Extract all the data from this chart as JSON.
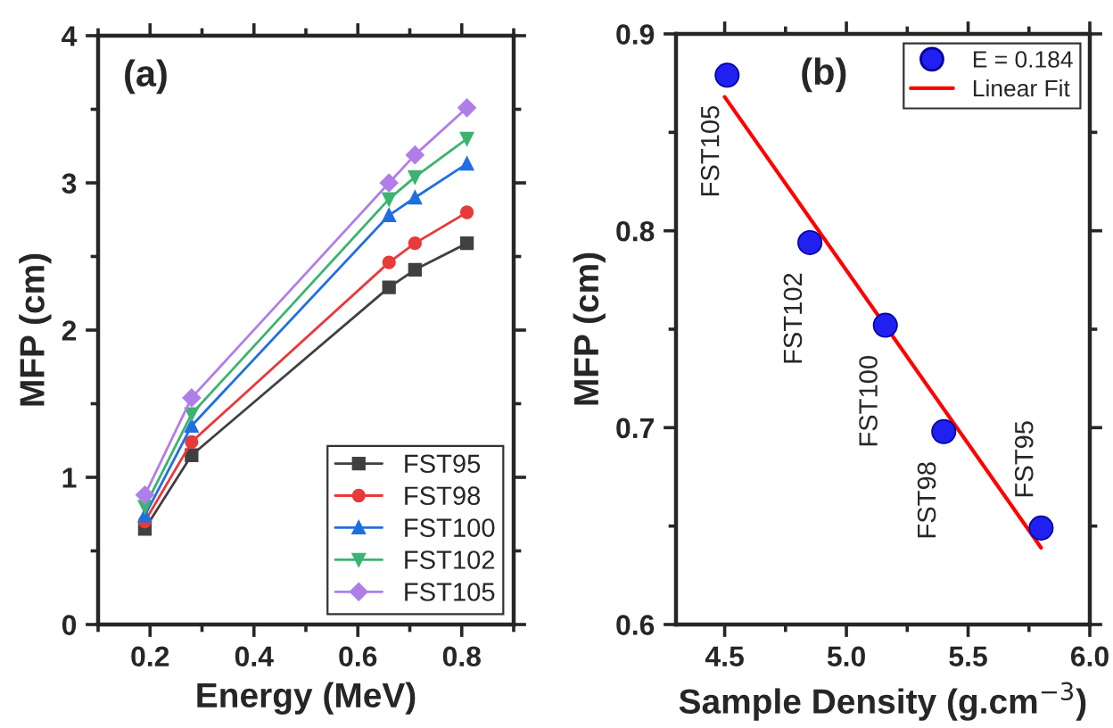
{
  "chart_data": [
    {
      "type": "line",
      "xlabel": "Energy (MeV)",
      "ylabel": "MFP (cm)",
      "annotations": [
        "(a)"
      ],
      "x": [
        0.19,
        0.28,
        0.66,
        0.71,
        0.81
      ],
      "xlim": [
        0.1,
        0.9
      ],
      "xticks": [
        0.2,
        0.4,
        0.6,
        0.8
      ],
      "ylim": [
        0,
        4
      ],
      "yticks": [
        0,
        1,
        2,
        3,
        4
      ],
      "grid": false,
      "legend": "bottom right",
      "line_style": "solid",
      "series": [
        {
          "name": "FST95",
          "color": "#404040",
          "marker": "square",
          "values": [
            0.65,
            1.15,
            2.29,
            2.41,
            2.59
          ]
        },
        {
          "name": "FST98",
          "color": "#e83a3a",
          "marker": "circle",
          "values": [
            0.7,
            1.24,
            2.46,
            2.59,
            2.8
          ]
        },
        {
          "name": "FST100",
          "color": "#1f6fe0",
          "marker": "triangle",
          "values": [
            0.74,
            1.35,
            2.78,
            2.9,
            3.13
          ]
        },
        {
          "name": "FST102",
          "color": "#3cb371",
          "marker": "triangle_down",
          "values": [
            0.8,
            1.43,
            2.89,
            3.04,
            3.3
          ]
        },
        {
          "name": "FST105",
          "color": "#b07ee8",
          "marker": "diamond",
          "values": [
            0.88,
            1.54,
            3.0,
            3.19,
            3.51
          ]
        }
      ]
    },
    {
      "type": "scatter",
      "xlabel": "Sample Density (g.cm$^{−3}$)",
      "ylabel": "MFP (cm)",
      "annotations": [
        "(b)",
        {
          "text": "FST105",
          "x": 4.51,
          "y": 0.879
        },
        {
          "text": "FST102",
          "x": 4.85,
          "y": 0.794
        },
        {
          "text": "FST100",
          "x": 5.16,
          "y": 0.752
        },
        {
          "text": "FST98",
          "x": 5.4,
          "y": 0.698
        },
        {
          "text": "FST95",
          "x": 5.8,
          "y": 0.649
        }
      ],
      "xlim": [
        4.3,
        6.0
      ],
      "xticks": [
        4.5,
        {
          "value": 5,
          "label": "5.0"
        },
        5.5,
        {
          "value": 6,
          "label": "6.0"
        }
      ],
      "ylim": [
        0.6,
        0.9
      ],
      "yticks": [
        0.6,
        0.7,
        0.8,
        0.9
      ],
      "grid": false,
      "legend": "top right",
      "series": [
        {
          "name": "E = 0.184",
          "type": "scatter",
          "color": "#2020f0",
          "marker": "circle",
          "x": [
            4.51,
            4.85,
            5.16,
            5.4,
            5.8
          ],
          "values": [
            0.879,
            0.794,
            0.752,
            0.698,
            0.649
          ]
        },
        {
          "name": "Linear Fit",
          "type": "line",
          "color": "#ff0000",
          "marker": "none",
          "x": [
            4.5,
            5.8
          ],
          "values": [
            0.868,
            0.639
          ]
        }
      ]
    }
  ]
}
